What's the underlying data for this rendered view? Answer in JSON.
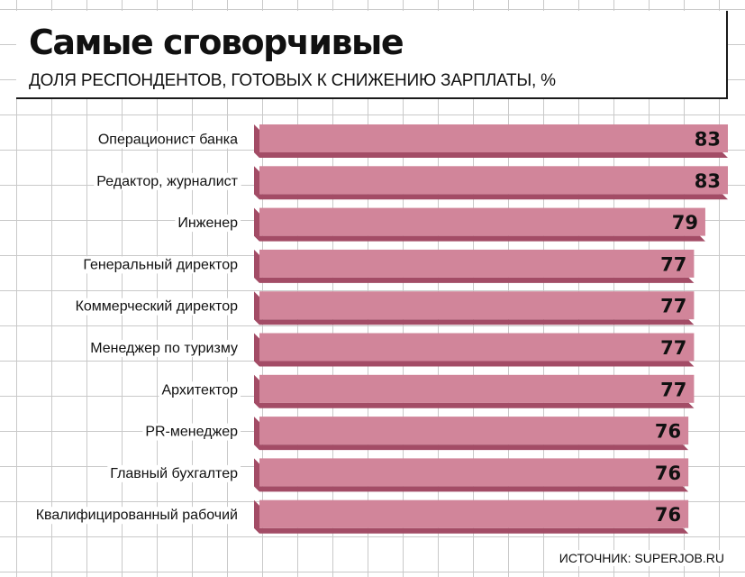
{
  "header": {
    "title": "Самые сговорчивые",
    "subtitle": "ДОЛЯ РЕСПОНДЕНТОВ, ГОТОВЫХ К СНИЖЕНИЮ ЗАРПЛАТЫ, %"
  },
  "footer": {
    "source": "ИСТОЧНИК: SUPERJOB.RU"
  },
  "colors": {
    "bar_face": "#d1859a",
    "bar_shadow": "#a34c66",
    "grid": "#c9c9c9"
  },
  "chart_data": {
    "type": "bar",
    "orientation": "horizontal",
    "title": "Самые сговорчивые",
    "subtitle": "ДОЛЯ РЕСПОНДЕНТОВ, ГОТОВЫХ К СНИЖЕНИЮ ЗАРПЛАТЫ, %",
    "categories": [
      "Операционист банка",
      "Редактор, журналист",
      "Инженер",
      "Генеральный директор",
      "Коммерческий директор",
      "Менеджер по туризму",
      "Архитектор",
      "PR-менеджер",
      "Главный бухгалтер",
      "Квалифицированный рабочий"
    ],
    "values": [
      83,
      83,
      79,
      77,
      77,
      77,
      77,
      76,
      76,
      76
    ],
    "data_labels": [
      "83",
      "83",
      "79",
      "77",
      "77",
      "77",
      "77",
      "76",
      "76",
      "76"
    ],
    "unit": "%",
    "grid": true,
    "source": "ИСТОЧНИК: SUPERJOB.RU"
  }
}
